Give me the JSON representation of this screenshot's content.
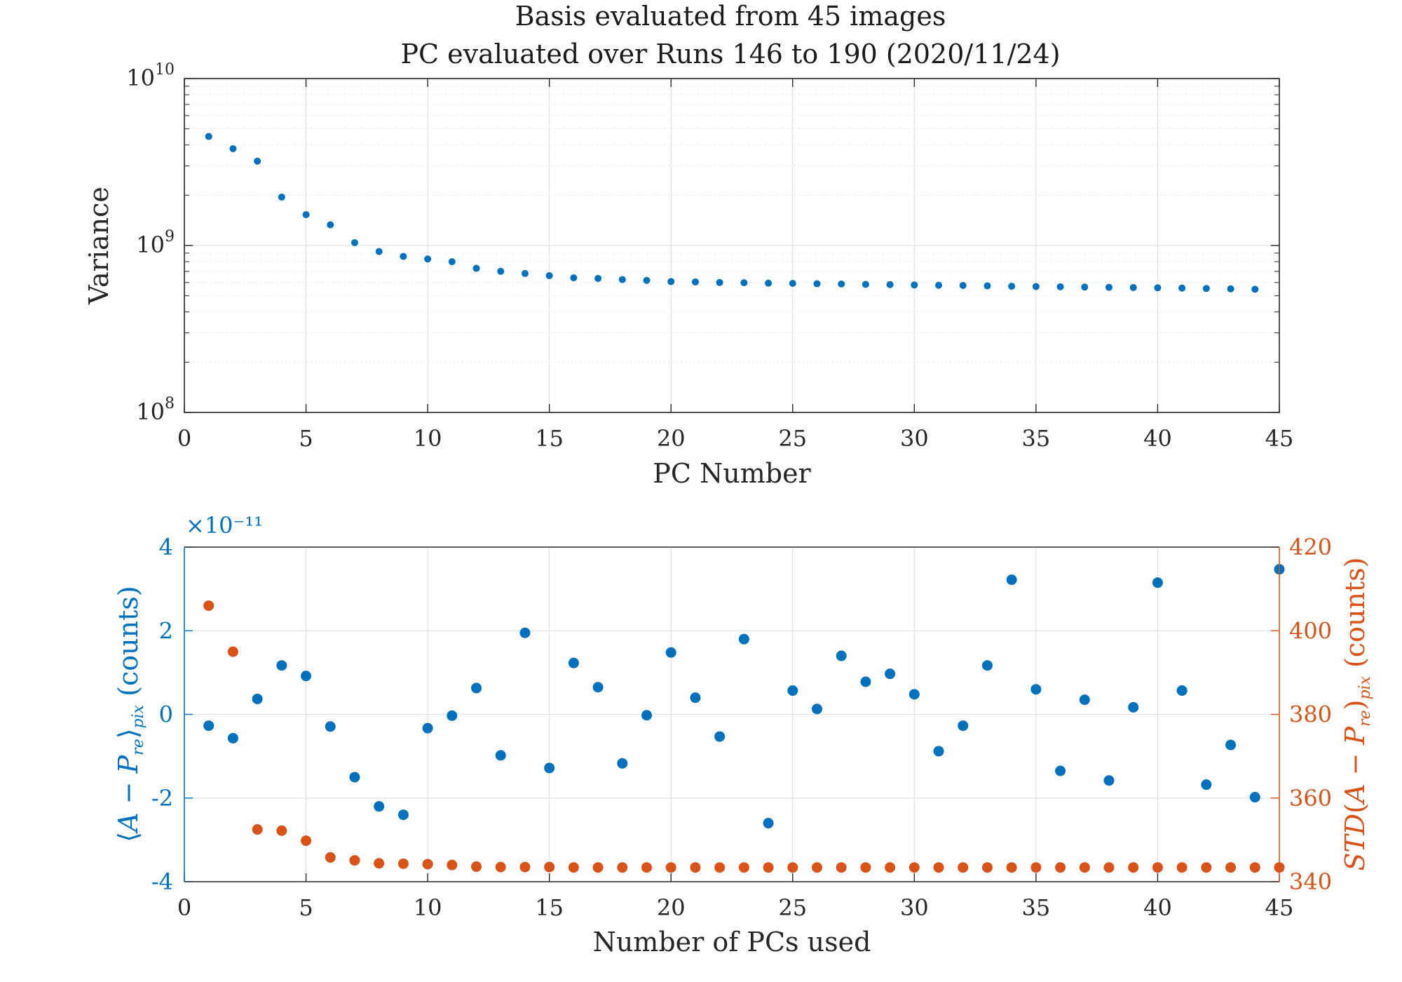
{
  "colors": {
    "blue": "#0072BD",
    "orange": "#D95319",
    "axis": "#262626",
    "grid": "#dfe3e8"
  },
  "chart_data": [
    {
      "type": "scatter",
      "title": [
        "Basis evaluated from 45 images",
        "PC evaluated over Runs 146 to 190 (2020/11/24)"
      ],
      "xlabel": "PC Number",
      "ylabel": "Variance",
      "xlim": [
        0,
        45
      ],
      "ylim": [
        100000000,
        10000000000
      ],
      "yscale": "log",
      "xticks": [
        "0",
        "5",
        "10",
        "15",
        "20",
        "25",
        "30",
        "35",
        "40",
        "45"
      ],
      "yticks": [
        {
          "base": "10",
          "exp": "8"
        },
        {
          "base": "10",
          "exp": "9"
        },
        {
          "base": "10",
          "exp": "10"
        }
      ],
      "grid": true,
      "series": [
        {
          "color": "#0072BD",
          "x": [
            1,
            2,
            3,
            4,
            5,
            6,
            7,
            8,
            9,
            10,
            11,
            12,
            13,
            14,
            15,
            16,
            17,
            18,
            19,
            20,
            21,
            22,
            23,
            24,
            25,
            26,
            27,
            28,
            29,
            30,
            31,
            32,
            33,
            34,
            35,
            36,
            37,
            38,
            39,
            40,
            41,
            42,
            43,
            44
          ],
          "values": [
            4500000000,
            3800000000,
            3200000000,
            1950000000,
            1530000000,
            1330000000,
            1040000000,
            920000000,
            860000000,
            830000000,
            800000000,
            730000000,
            700000000,
            680000000,
            660000000,
            640000000,
            635000000,
            625000000,
            618000000,
            608000000,
            605000000,
            600000000,
            598000000,
            595000000,
            593000000,
            590000000,
            588000000,
            585000000,
            583000000,
            580000000,
            578000000,
            576000000,
            573000000,
            570000000,
            568000000,
            566000000,
            564000000,
            562000000,
            560000000,
            558000000,
            556000000,
            553000000,
            550000000,
            547000000
          ]
        }
      ]
    },
    {
      "type": "scatter",
      "xlabel": "Number of PCs used",
      "ylabel_left": "⟨A − P_re⟩_pix (counts)",
      "ylabel_right": "STD(A − P_re)_pix (counts)",
      "xlim": [
        0,
        45
      ],
      "ylim_left": [
        -4,
        4
      ],
      "ylim_right": [
        340,
        420
      ],
      "left_multiplier": "×10⁻¹¹",
      "xticks": [
        "0",
        "5",
        "10",
        "15",
        "20",
        "25",
        "30",
        "35",
        "40",
        "45"
      ],
      "yticks_left": [
        "-4",
        "-2",
        "0",
        "2",
        "4"
      ],
      "yticks_right": [
        "340",
        "360",
        "380",
        "400",
        "420"
      ],
      "grid": true,
      "series": [
        {
          "axis": "left",
          "color": "#0072BD",
          "x": [
            1,
            2,
            3,
            4,
            5,
            6,
            7,
            8,
            9,
            10,
            11,
            12,
            13,
            14,
            15,
            16,
            17,
            18,
            19,
            20,
            21,
            22,
            23,
            24,
            25,
            26,
            27,
            28,
            29,
            30,
            31,
            32,
            33,
            34,
            35,
            36,
            37,
            38,
            39,
            40,
            41,
            42,
            43,
            44,
            45
          ],
          "values": [
            -0.27,
            -0.57,
            0.37,
            1.17,
            0.92,
            -0.29,
            -1.5,
            -2.2,
            -2.4,
            -0.33,
            -0.03,
            0.63,
            -0.98,
            1.95,
            -1.28,
            1.23,
            0.65,
            -1.17,
            -0.02,
            1.48,
            0.4,
            -0.53,
            1.8,
            -2.6,
            0.57,
            0.13,
            1.4,
            0.78,
            0.97,
            0.48,
            -0.88,
            -0.27,
            1.17,
            3.22,
            0.6,
            -1.35,
            0.35,
            -1.58,
            0.17,
            3.15,
            0.57,
            -1.68,
            -0.73,
            -1.98,
            3.47
          ]
        },
        {
          "axis": "right",
          "color": "#D95319",
          "x": [
            1,
            2,
            3,
            4,
            5,
            6,
            7,
            8,
            9,
            10,
            11,
            12,
            13,
            14,
            15,
            16,
            17,
            18,
            19,
            20,
            21,
            22,
            23,
            24,
            25,
            26,
            27,
            28,
            29,
            30,
            31,
            32,
            33,
            34,
            35,
            36,
            37,
            38,
            39,
            40,
            41,
            42,
            43,
            44,
            45
          ],
          "values": [
            406,
            395,
            352.5,
            352.2,
            349.8,
            345.8,
            345.1,
            344.4,
            344.3,
            344.2,
            344,
            343.6,
            343.5,
            343.5,
            343.5,
            343.4,
            343.4,
            343.4,
            343.4,
            343.4,
            343.4,
            343.4,
            343.4,
            343.4,
            343.4,
            343.4,
            343.4,
            343.4,
            343.4,
            343.4,
            343.4,
            343.4,
            343.4,
            343.4,
            343.4,
            343.4,
            343.4,
            343.4,
            343.4,
            343.4,
            343.4,
            343.4,
            343.4,
            343.4,
            343.4
          ]
        }
      ]
    }
  ]
}
